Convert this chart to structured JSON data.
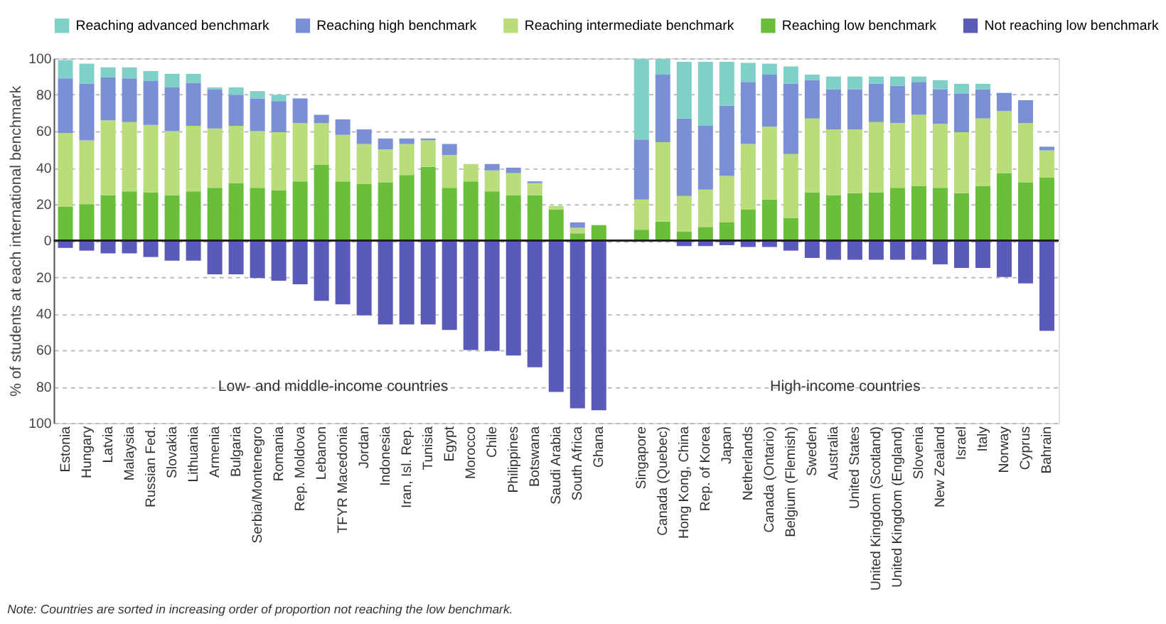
{
  "chart_data": {
    "type": "bar",
    "stacked": true,
    "ylabel": "% of students at each international benchmark",
    "categories": [
      "Estonia",
      "Hungary",
      "Latvia",
      "Malaysia",
      "Russian Fed.",
      "Slovakia",
      "Lithuania",
      "Armenia",
      "Bulgaria",
      "Serbia/Montenegro",
      "Romania",
      "Rep. Moldova",
      "Lebanon",
      "TFYR Macedonia",
      "Jordan",
      "Indonesia",
      "Iran, Isl. Rep.",
      "Tunisia",
      "Egypt",
      "Morocco",
      "Chile",
      "Philippines",
      "Botswana",
      "Saudi Arabia",
      "South Africa",
      "Ghana",
      null,
      "Singapore",
      "Canada (Quebec)",
      "Hong Kong, China",
      "Rep. of Korea",
      "Japan",
      "Netherlands",
      "Canada (Ontario)",
      "Belgium (Flemish)",
      "Sweden",
      "Australia",
      "United States",
      "United Kingdom (Scotland)",
      "United Kingdom (England)",
      "Slovenia",
      "New Zealand",
      "Israel",
      "Italy",
      "Norway",
      "Cyprus",
      "Bahrain"
    ],
    "series": [
      {
        "name": "Reaching low benchmark",
        "color": "#6abf3a",
        "values": [
          18.5,
          20,
          25,
          27,
          26.5,
          25,
          27,
          29,
          31.5,
          29,
          27.5,
          32.5,
          41.5,
          32.5,
          31,
          32,
          36,
          40.5,
          29,
          32.5,
          27,
          25,
          25,
          17,
          4,
          8.5,
          null,
          6,
          10.5,
          5,
          7.5,
          10,
          17,
          22.5,
          12.5,
          26.5,
          25,
          26,
          26.5,
          29,
          30,
          29,
          26,
          30,
          37,
          32,
          34.5
        ]
      },
      {
        "name": "Reaching intermediate benchmark",
        "color": "#b9dd7a",
        "values": [
          40.5,
          35,
          41,
          38,
          37,
          35,
          36,
          32.5,
          31.5,
          31,
          32,
          32,
          23,
          25.5,
          22,
          18,
          17,
          14.5,
          18,
          9.5,
          11.5,
          12,
          6.5,
          2,
          3,
          null,
          null,
          16.5,
          43.5,
          19.5,
          20.5,
          25.5,
          36,
          40,
          35,
          40.5,
          36,
          35,
          38.5,
          35.5,
          39,
          35,
          33.5,
          37,
          34,
          32.5,
          15
        ]
      },
      {
        "name": "Reaching high benchmark",
        "color": "#7b8fd6",
        "values": [
          30,
          31,
          23.5,
          24,
          24,
          24,
          23.5,
          21.5,
          17,
          18,
          17,
          13.5,
          4.5,
          8.5,
          8,
          6,
          3,
          1,
          6,
          null,
          3.5,
          3,
          1,
          null,
          3,
          null,
          null,
          33,
          37,
          42.5,
          35,
          38.5,
          34,
          28.5,
          38.5,
          21,
          22,
          22,
          21,
          20.5,
          18,
          19,
          21,
          16,
          10,
          12.5,
          2
        ]
      },
      {
        "name": "Reaching advanced benchmark",
        "color": "#7fd0c8",
        "values": [
          10,
          11,
          5.5,
          6,
          5.5,
          7.5,
          5,
          1,
          4,
          4,
          3.5,
          null,
          null,
          null,
          null,
          null,
          null,
          null,
          null,
          null,
          null,
          null,
          null,
          null,
          null,
          null,
          null,
          44,
          8.5,
          31,
          35,
          24,
          10.5,
          6,
          9.5,
          3,
          7,
          7,
          4,
          5,
          3,
          5,
          5.5,
          3,
          null,
          null,
          null
        ]
      },
      {
        "name": "Not reaching low benchmark",
        "color": "#5a5ab8",
        "values": [
          -4,
          -5.5,
          -7,
          -7,
          -9,
          -11,
          -11,
          -18.5,
          -18.5,
          -20.5,
          -22,
          -24,
          -33,
          -35,
          -41,
          -46,
          -46,
          -46,
          -49,
          -60,
          -60.5,
          -63,
          -69.5,
          -83,
          -92,
          -93,
          null,
          null,
          null,
          -3,
          -3,
          -2.5,
          -3.5,
          -3.5,
          -5.5,
          -9.5,
          -10.5,
          -10.5,
          -10.5,
          -10.5,
          -10.5,
          -13,
          -15,
          -15,
          -20,
          -23.5,
          -49.5
        ]
      }
    ],
    "ylim": [
      -100,
      100
    ],
    "yticks": [
      {
        "value": -100,
        "label": "100"
      },
      {
        "value": -80,
        "label": "80"
      },
      {
        "value": -60,
        "label": "60"
      },
      {
        "value": -40,
        "label": "40"
      },
      {
        "value": -20,
        "label": "20"
      },
      0,
      20,
      40,
      60,
      80,
      100
    ],
    "ref_lines": [
      {
        "axis": "y",
        "value": 0,
        "color": "#222222"
      }
    ],
    "annotations": [
      "Low- and middle-income countries",
      "High-income countries",
      "Note: Countries are sorted in increasing order of proportion not reaching the low benchmark."
    ],
    "grid": "y",
    "legend": "top"
  }
}
